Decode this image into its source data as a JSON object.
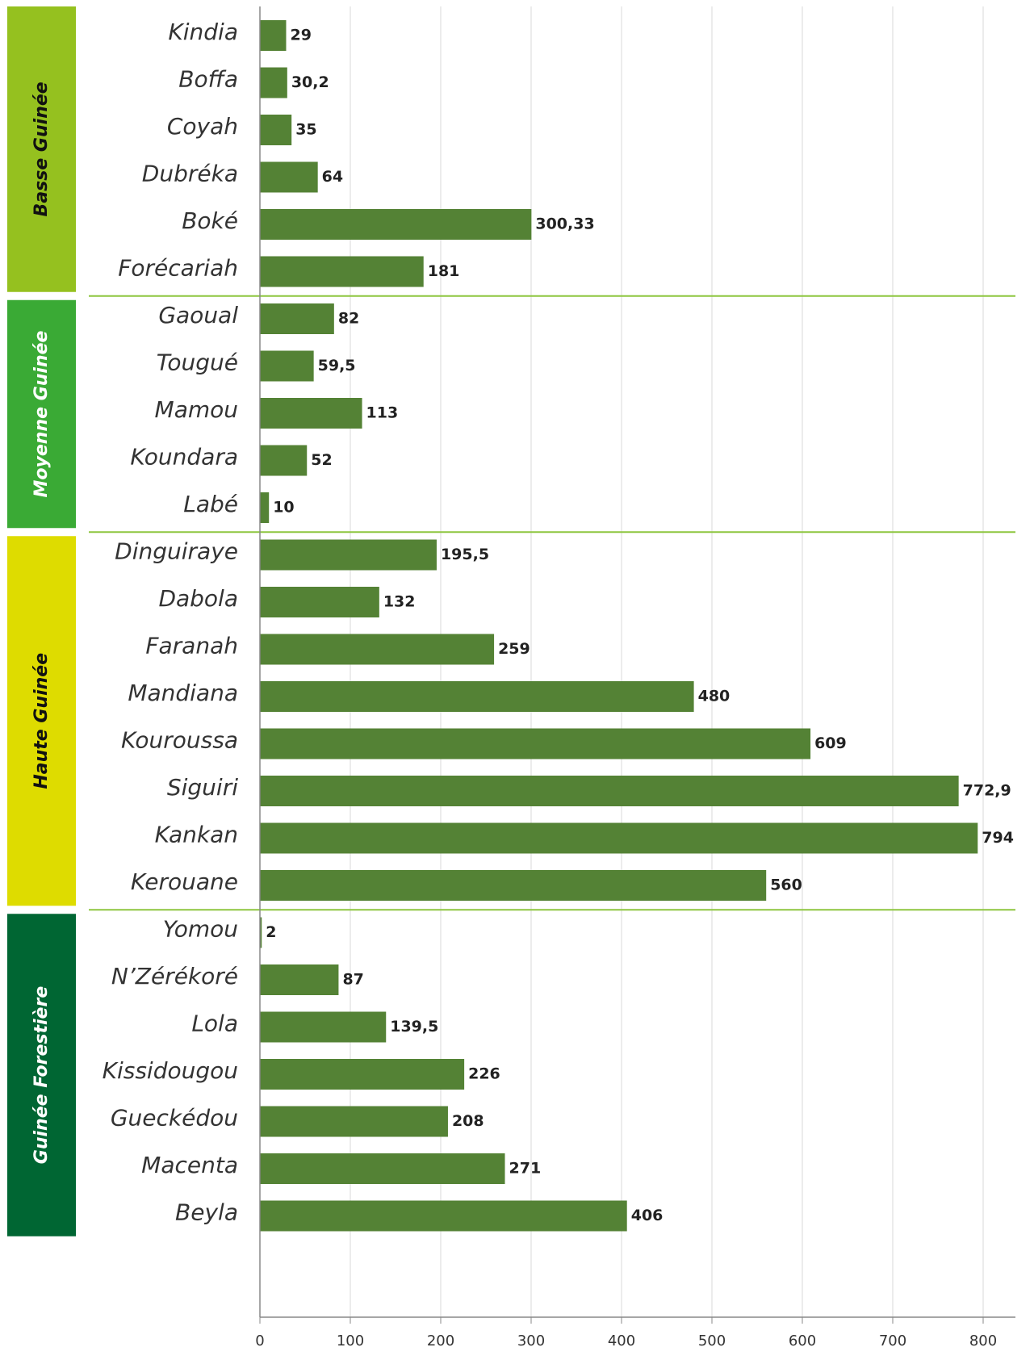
{
  "chart_data": {
    "type": "bar",
    "orientation": "horizontal",
    "color": "#548235",
    "grid": true,
    "xlim": [
      0,
      800
    ],
    "xticks": [
      0,
      100,
      200,
      300,
      400,
      500,
      600,
      700,
      800
    ],
    "groups": [
      {
        "name": "Basse Guinée",
        "color": "#95c11f",
        "text_color": "#111111",
        "categories": [
          "Kindia",
          "Boffa",
          "Coyah",
          "Dubréka",
          "Boké",
          "Forécariah"
        ],
        "values": [
          29,
          30.2,
          35,
          64,
          300.33,
          181
        ],
        "value_labels": [
          "29",
          "30,2",
          "35",
          "64",
          "300,33",
          "181"
        ]
      },
      {
        "name": "Moyenne Guinée",
        "color": "#3aaa35",
        "text_color": "#ffffff",
        "categories": [
          "Gaoual",
          "Tougué",
          "Mamou",
          "Koundara",
          "Labé"
        ],
        "values": [
          82,
          59.5,
          113,
          52,
          10
        ],
        "value_labels": [
          "82",
          "59,5",
          "113",
          "52",
          "10"
        ]
      },
      {
        "name": "Haute Guinée",
        "color": "#dedc00",
        "text_color": "#111111",
        "categories": [
          "Dinguiraye",
          "Dabola",
          "Faranah",
          "Mandiana",
          "Kouroussa",
          "Siguiri",
          "Kankan",
          "Kerouane"
        ],
        "values": [
          195.5,
          132,
          259,
          480,
          609,
          772.9,
          794,
          560
        ],
        "value_labels": [
          "195,5",
          "132",
          "259",
          "480",
          "609",
          "772,9",
          "794",
          "560"
        ]
      },
      {
        "name": "Guinée Forestière",
        "color": "#006633",
        "text_color": "#ffffff",
        "categories": [
          "Yomou",
          "N’Zérékoré",
          "Lola",
          "Kissidougou",
          "Gueckédou",
          "Macenta",
          "Beyla"
        ],
        "values": [
          2,
          87,
          139.5,
          226,
          208,
          271,
          406
        ],
        "value_labels": [
          "2",
          "87",
          "139,5",
          "226",
          "208",
          "271",
          "406"
        ]
      }
    ]
  }
}
